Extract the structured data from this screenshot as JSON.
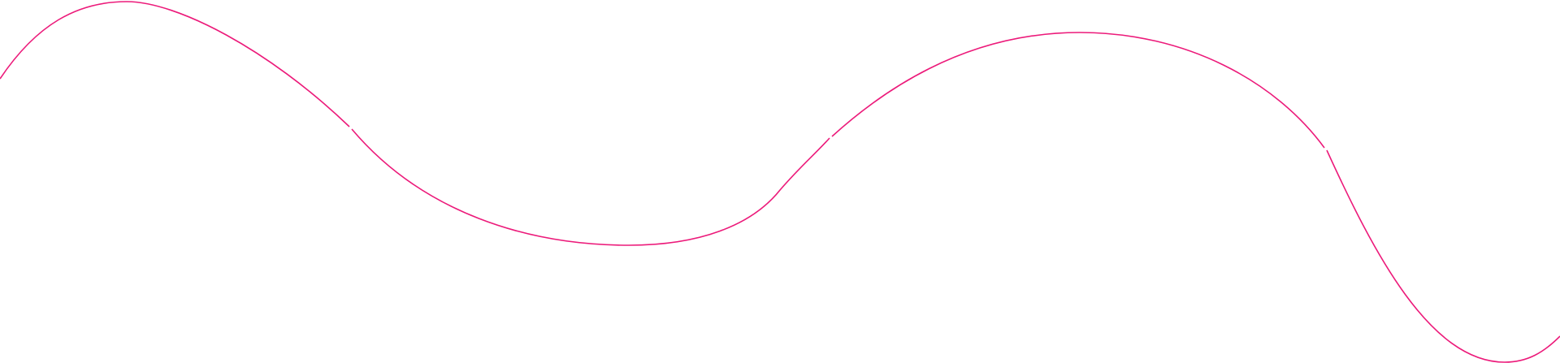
{
  "decoration": {
    "type": "wave-line",
    "stroke_color": "#ec1a7a",
    "background_color": "#ffffff",
    "segment_count": 4
  }
}
